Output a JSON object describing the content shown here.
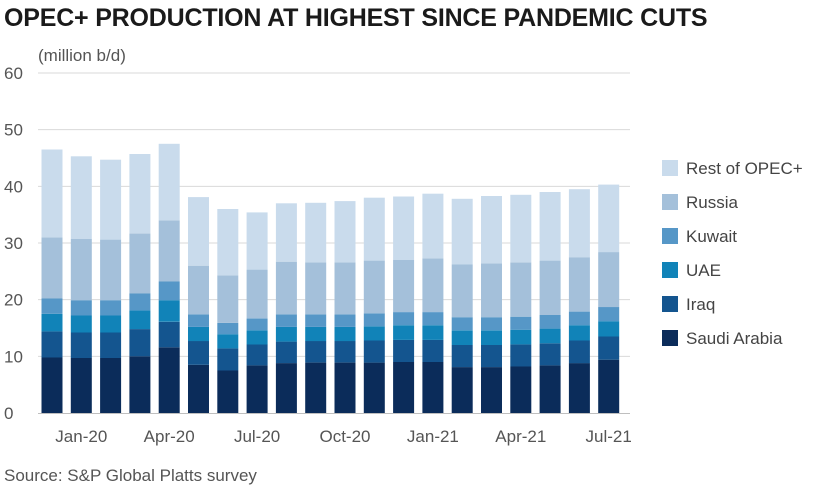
{
  "chart_data": {
    "type": "bar",
    "stacked": true,
    "title": "OPEC+ PRODUCTION AT HIGHEST SINCE PANDEMIC CUTS",
    "unit_label": "(million b/d)",
    "source": "Source: S&P Global Platts survey",
    "ylim": [
      0,
      60
    ],
    "yticks": [
      "0",
      "10",
      "20",
      "30",
      "40",
      "50",
      "60"
    ],
    "ytick_values": [
      0,
      10,
      20,
      30,
      40,
      50,
      60
    ],
    "xtick_labels": [
      {
        "index": 1,
        "label": "Jan-20"
      },
      {
        "index": 4,
        "label": "Apr-20"
      },
      {
        "index": 7,
        "label": "Jul-20"
      },
      {
        "index": 10,
        "label": "Oct-20"
      },
      {
        "index": 13,
        "label": "Jan-21"
      },
      {
        "index": 16,
        "label": "Apr-21"
      },
      {
        "index": 19,
        "label": "Jul-21"
      }
    ],
    "categories": [
      "Dec-19",
      "Jan-20",
      "Feb-20",
      "Mar-20",
      "Apr-20",
      "May-20",
      "Jun-20",
      "Jul-20",
      "Aug-20",
      "Sep-20",
      "Oct-20",
      "Nov-20",
      "Dec-20",
      "Jan-21",
      "Feb-21",
      "Mar-21",
      "Apr-21",
      "May-21",
      "Jun-21",
      "Jul-21"
    ],
    "grid": true,
    "legend_position": "right",
    "series": [
      {
        "name": "Saudi Arabia",
        "color": "#0b2c5a",
        "values": [
          9.8,
          9.7,
          9.7,
          10.0,
          11.6,
          8.5,
          7.5,
          8.4,
          8.8,
          8.9,
          8.9,
          8.9,
          9.0,
          9.0,
          8.1,
          8.1,
          8.2,
          8.4,
          8.8,
          9.4
        ]
      },
      {
        "name": "Iraq",
        "color": "#14558f",
        "values": [
          4.6,
          4.5,
          4.5,
          4.8,
          4.5,
          4.2,
          3.9,
          3.7,
          3.8,
          3.8,
          3.8,
          3.9,
          3.9,
          3.9,
          3.9,
          3.9,
          3.9,
          3.9,
          4.0,
          4.1
        ]
      },
      {
        "name": "UAE",
        "color": "#1183b8",
        "values": [
          3.1,
          3.0,
          3.0,
          3.3,
          3.8,
          2.5,
          2.5,
          2.5,
          2.6,
          2.5,
          2.5,
          2.5,
          2.6,
          2.6,
          2.6,
          2.6,
          2.6,
          2.6,
          2.7,
          2.7
        ]
      },
      {
        "name": "Kuwait",
        "color": "#5697c7",
        "values": [
          2.7,
          2.7,
          2.7,
          3.0,
          3.3,
          2.2,
          2.0,
          2.1,
          2.2,
          2.2,
          2.2,
          2.3,
          2.3,
          2.3,
          2.3,
          2.3,
          2.3,
          2.4,
          2.4,
          2.5
        ]
      },
      {
        "name": "Russia",
        "color": "#a4c0da",
        "values": [
          10.8,
          10.8,
          10.7,
          10.6,
          10.8,
          8.6,
          8.4,
          8.6,
          9.3,
          9.2,
          9.2,
          9.3,
          9.2,
          9.5,
          9.3,
          9.5,
          9.6,
          9.6,
          9.6,
          9.7
        ]
      },
      {
        "name": "Rest of OPEC+",
        "color": "#c9dbec",
        "values": [
          15.5,
          14.6,
          14.1,
          14.0,
          13.5,
          12.1,
          11.7,
          10.1,
          10.3,
          10.5,
          10.8,
          11.1,
          11.2,
          11.4,
          11.6,
          11.9,
          11.9,
          12.1,
          12.0,
          11.9
        ]
      }
    ]
  }
}
